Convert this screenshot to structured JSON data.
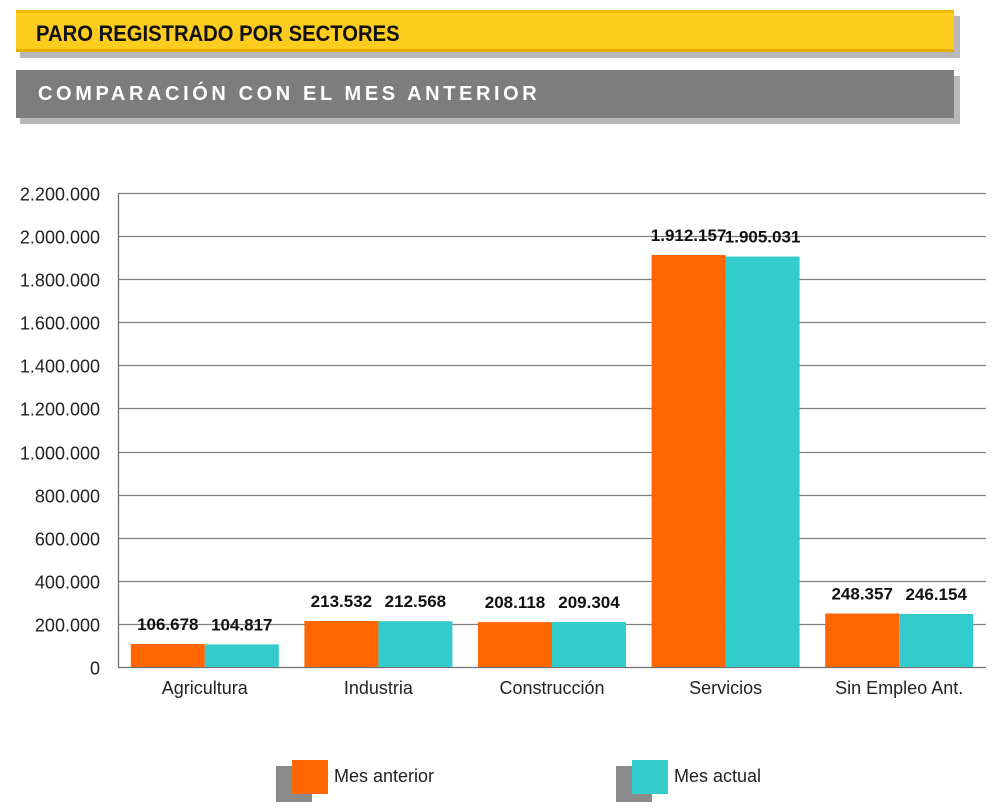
{
  "header": {
    "title": "PARO REGISTRADO POR SECTORES",
    "subtitle": "COMPARACIÓN CON EL MES ANTERIOR"
  },
  "colors": {
    "title_banner": "#fccc1f",
    "subtitle_banner": "#7d7d7d",
    "mes_anterior": "#ff6600",
    "mes_actual": "#33cccc",
    "grid": "#808080"
  },
  "chart_data": {
    "type": "bar",
    "title": "",
    "xlabel": "",
    "ylabel": "",
    "ylim": [
      0,
      2200000
    ],
    "grid": true,
    "legend_position": "bottom",
    "y_ticks": [
      0,
      200000,
      400000,
      600000,
      800000,
      1000000,
      1200000,
      1400000,
      1600000,
      1800000,
      2000000,
      2200000
    ],
    "y_tick_labels": [
      "0",
      "200.000",
      "400.000",
      "600.000",
      "800.000",
      "1.000.000",
      "1.200.000",
      "1.400.000",
      "1.600.000",
      "1.800.000",
      "2.000.000",
      "2.200.000"
    ],
    "categories": [
      "Agricultura",
      "Industria",
      "Construcción",
      "Servicios",
      "Sin Empleo Ant."
    ],
    "series": [
      {
        "name": "Mes anterior",
        "color": "#ff6600",
        "values": [
          106678,
          213532,
          208118,
          1912157,
          248357
        ],
        "labels": [
          "106.678",
          "213.532",
          "208.118",
          "1.912.157",
          "248.357"
        ]
      },
      {
        "name": "Mes actual",
        "color": "#33cccc",
        "values": [
          104817,
          212568,
          209304,
          1905031,
          246154
        ],
        "labels": [
          "104.817",
          "212.568",
          "209.304",
          "1.905.031",
          "246.154"
        ]
      }
    ]
  }
}
